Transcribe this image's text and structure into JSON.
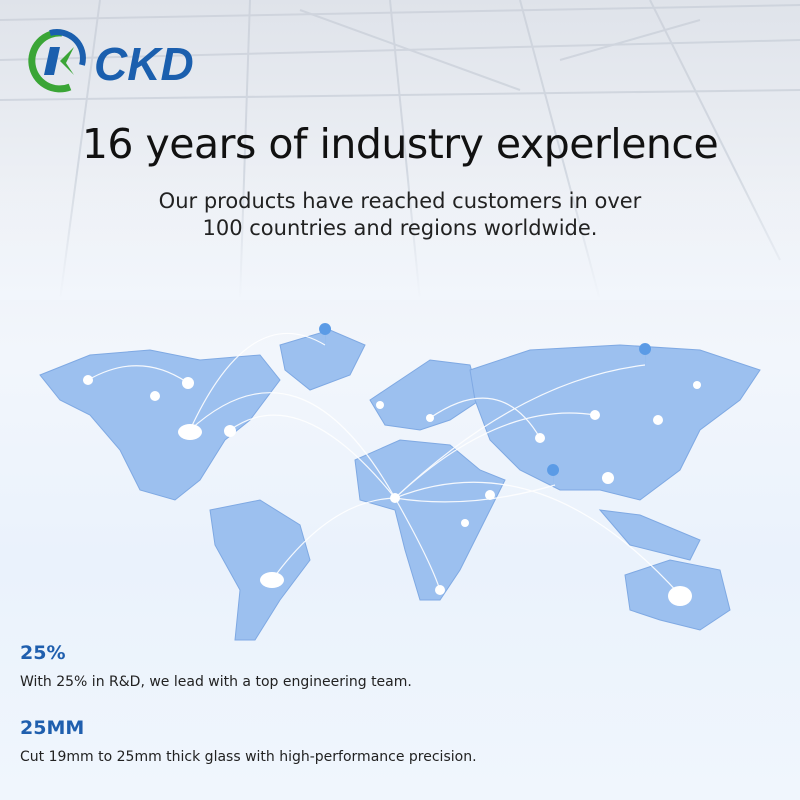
{
  "brand": {
    "logo_text": "CKD",
    "colors": {
      "blue": "#1b5fae",
      "green": "#3aa536"
    }
  },
  "header": {
    "title": "16 years of industry experlence",
    "subtitle_line1": "Our products have reached customers in over",
    "subtitle_line2": "100 countries and regions worldwide."
  },
  "stats": [
    {
      "headline": "25%",
      "text": "With 25% in R&D, we lead with a top engineering team."
    },
    {
      "headline": "25MM",
      "text": "Cut 19mm to 25mm thick glass with high-performance precision."
    }
  ],
  "map": {
    "land_color": "#9cc0ef",
    "icon": "world-map-icon"
  }
}
